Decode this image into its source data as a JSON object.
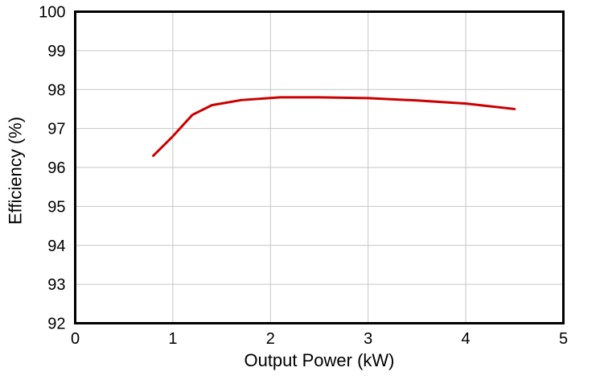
{
  "chart_data": {
    "type": "line",
    "title": "",
    "xlabel": "Output Power (kW)",
    "ylabel": "Efficiency (%)",
    "xlim": [
      0,
      5
    ],
    "ylim": [
      92,
      100
    ],
    "xticks": [
      0,
      1,
      2,
      3,
      4,
      5
    ],
    "yticks": [
      92,
      93,
      94,
      95,
      96,
      97,
      98,
      99,
      100
    ],
    "grid": true,
    "legend_position": "none",
    "frame_color": "#000000",
    "grid_color": "#c6c6c6",
    "tick_label_color": "#000000",
    "background_color": "#ffffff",
    "series": [
      {
        "name": "Efficiency",
        "color": "#cc0000",
        "line_width": 3,
        "x": [
          0.8,
          1.0,
          1.2,
          1.4,
          1.7,
          2.1,
          2.5,
          3.0,
          3.5,
          4.0,
          4.5
        ],
        "y": [
          96.3,
          96.8,
          97.35,
          97.6,
          97.73,
          97.8,
          97.8,
          97.78,
          97.72,
          97.64,
          97.5
        ]
      }
    ]
  }
}
